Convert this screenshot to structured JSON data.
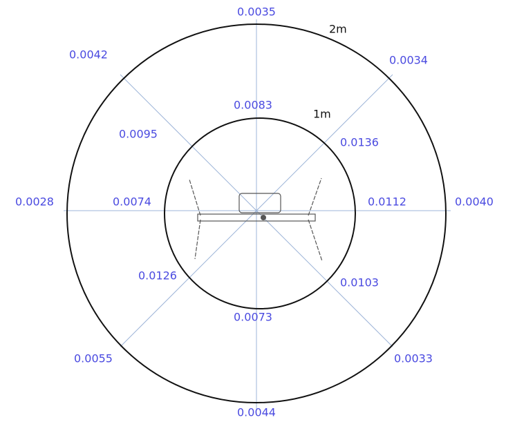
{
  "rings": [
    {
      "label": "1m",
      "values": [
        "0.0083",
        "0.0136",
        "0.0112",
        "0.0103",
        "0.0073",
        "0.0126",
        "0.0074",
        "0.0095"
      ]
    },
    {
      "label": "2m",
      "values": [
        "0.0035",
        "0.0034",
        "0.0040",
        "0.0033",
        "0.0044",
        "0.0055",
        "0.0028",
        "0.0042"
      ]
    }
  ]
}
